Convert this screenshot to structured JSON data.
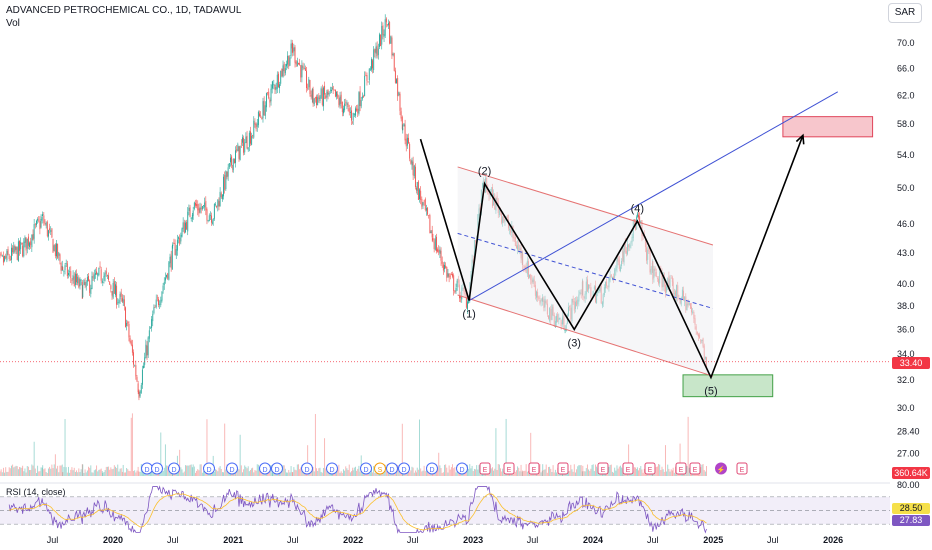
{
  "header": {
    "title": "ADVANCED PETROCHEMICAL CO., 1D, TADAWUL",
    "volume_label": "Vol",
    "currency_button": "SAR"
  },
  "tags": {
    "last_price": "33.40",
    "last_volume": "360.64K",
    "rsi_value": "28.50",
    "rsi_ma": "27.83"
  },
  "rsi": {
    "label": "RSI (14, close)",
    "axis_ticks": [
      "80.00"
    ]
  },
  "colors": {
    "up": "#26a69a",
    "down": "#ef5350",
    "pattern": "#000000",
    "channel": "#e57373",
    "trend": "#3f51d4",
    "rsi_line": "#7e57c2",
    "rsi_ma": "#fbc02d",
    "target_box": "#f7c6cc",
    "support_box": "#c8e6c9",
    "last_price": "#f23645"
  },
  "chart_data": {
    "type": "candlestick",
    "title": "ADVANCED PETROCHEMICAL CO., 1D, TADAWUL",
    "x_tick_labels": [
      "Jul",
      "2020",
      "Jul",
      "2021",
      "Jul",
      "2022",
      "Jul",
      "2023",
      "Jul",
      "2024",
      "Jul",
      "2025",
      "Jul",
      "2026"
    ],
    "y_ticks": [
      70.0,
      66.0,
      62.0,
      58.0,
      54.0,
      50.0,
      46.0,
      43.0,
      40.0,
      38.0,
      36.0,
      34.0,
      32.0,
      30.0,
      28.4,
      27.0
    ],
    "y_tick_labels": [
      "70.0",
      "66.0",
      "62.0",
      "58.0",
      "54.0",
      "50.0",
      "46.0",
      "43.0",
      "40.0",
      "38.0",
      "36.0",
      "34.0",
      "32.0",
      "30.0",
      "28.40",
      "27.00"
    ],
    "y_scale": "log",
    "price_path": [
      [
        "2019-01-01",
        41.5
      ],
      [
        "2019-04-01",
        43.5
      ],
      [
        "2019-06-01",
        46.5
      ],
      [
        "2019-08-01",
        41.5
      ],
      [
        "2019-10-01",
        39.5
      ],
      [
        "2019-12-01",
        41.0
      ],
      [
        "2020-02-01",
        38.0
      ],
      [
        "2020-03-20",
        31.3
      ],
      [
        "2020-05-01",
        37.0
      ],
      [
        "2020-07-01",
        43.0
      ],
      [
        "2020-09-01",
        48.0
      ],
      [
        "2020-11-01",
        47.0
      ],
      [
        "2021-01-01",
        53.5
      ],
      [
        "2021-03-01",
        57.0
      ],
      [
        "2021-05-01",
        63.0
      ],
      [
        "2021-07-01",
        69.0
      ],
      [
        "2021-09-01",
        61.5
      ],
      [
        "2021-11-01",
        62.0
      ],
      [
        "2022-01-01",
        59.0
      ],
      [
        "2022-03-01",
        67.0
      ],
      [
        "2022-04-15",
        74.0
      ],
      [
        "2022-06-01",
        58.0
      ],
      [
        "2022-07-15",
        50.0
      ],
      [
        "2022-09-01",
        44.5
      ],
      [
        "2022-10-20",
        40.5
      ],
      [
        "2022-12-15",
        38.5
      ],
      [
        "2023-02-01",
        50.5
      ],
      [
        "2023-04-01",
        47.0
      ],
      [
        "2023-06-01",
        42.5
      ],
      [
        "2023-08-01",
        38.0
      ],
      [
        "2023-10-01",
        36.5
      ],
      [
        "2023-12-01",
        39.5
      ],
      [
        "2024-02-01",
        39.0
      ],
      [
        "2024-04-01",
        43.0
      ],
      [
        "2024-05-15",
        46.5
      ],
      [
        "2024-07-01",
        41.0
      ],
      [
        "2024-09-01",
        39.5
      ],
      [
        "2024-10-20",
        38.0
      ],
      [
        "2024-12-15",
        33.4
      ]
    ],
    "wave_points": [
      {
        "label": "",
        "date": "2022-07-25",
        "price": 56.0
      },
      {
        "label": "(1)",
        "date": "2022-12-20",
        "price": 38.5
      },
      {
        "label": "(2)",
        "date": "2023-02-05",
        "price": 50.5
      },
      {
        "label": "(3)",
        "date": "2023-11-05",
        "price": 36.0
      },
      {
        "label": "(4)",
        "date": "2024-05-15",
        "price": 46.3
      },
      {
        "label": "(5)",
        "date": "2024-12-25",
        "price": 32.2
      },
      {
        "label": "",
        "date": "2025-10-01",
        "price": 56.5
      }
    ],
    "channel": {
      "upper": [
        [
          "2022-11-15",
          52.5
        ],
        [
          "2024-12-31",
          43.8
        ]
      ],
      "lower": [
        [
          "2022-11-15",
          39.0
        ],
        [
          "2024-12-31",
          32.3
        ]
      ],
      "mid": [
        [
          "2022-11-15",
          45.0
        ],
        [
          "2024-12-31",
          37.8
        ]
      ]
    },
    "trendline": [
      [
        "2022-12-20",
        38.5
      ],
      [
        "2026-01-15",
        62.5
      ]
    ],
    "target_zone": {
      "from": "2025-08-01",
      "to": "2026-05-01",
      "low": 56.3,
      "high": 59.0
    },
    "support_zone": {
      "from": "2024-10-01",
      "to": "2025-07-01",
      "low": 30.8,
      "high": 32.4
    },
    "last_price": 33.4,
    "last_volume": "360.64K",
    "event_markers": [
      "D",
      "D",
      "D",
      "D",
      "D",
      "D",
      "D",
      "D",
      "D",
      "D",
      "S",
      "D",
      "D",
      "D",
      "D",
      "E",
      "E",
      "E",
      "E",
      "E",
      "E",
      "E",
      "E",
      "E",
      "⚡",
      "E"
    ],
    "rsi": {
      "label": "RSI (14, close)",
      "levels": [
        70,
        50,
        30
      ],
      "value": 28.5,
      "ma": 27.83
    }
  }
}
